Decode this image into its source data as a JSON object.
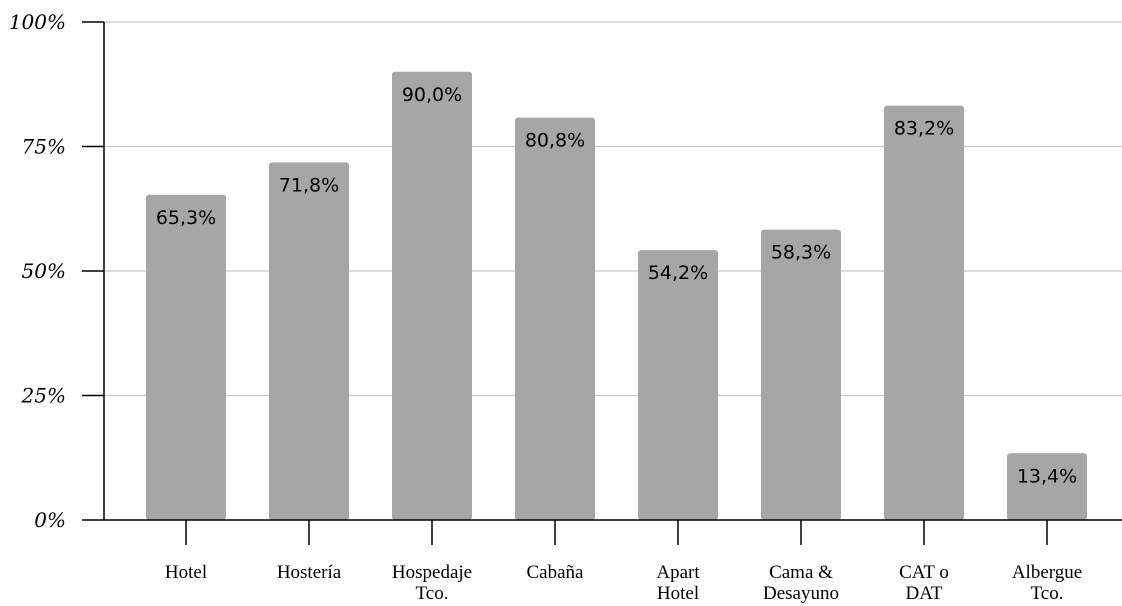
{
  "chart_data": {
    "type": "bar",
    "categories": [
      [
        "Hotel"
      ],
      [
        "Hostería"
      ],
      [
        "Hospedaje",
        "Tco."
      ],
      [
        "Cabaña"
      ],
      [
        "Apart",
        "Hotel"
      ],
      [
        "Cama &",
        "Desayuno"
      ],
      [
        "CAT o",
        "DAT"
      ],
      [
        "Albergue",
        "Tco."
      ]
    ],
    "values": [
      65.3,
      71.8,
      90.0,
      80.8,
      54.2,
      58.3,
      83.2,
      13.4
    ],
    "data_labels": [
      "65,3%",
      "71,8%",
      "90,0%",
      "80,8%",
      "54,2%",
      "58,3%",
      "83,2%",
      "13,4%"
    ],
    "ylim": [
      0,
      100
    ],
    "yticks": [
      0,
      25,
      50,
      75,
      100
    ],
    "ytick_labels": [
      "0%",
      "25%",
      "50%",
      "75%",
      "100%"
    ],
    "grid": true,
    "legend": "none",
    "colors": {
      "bar": "#a6a6a6",
      "grid": "#c8c8c8",
      "axis": "#000000"
    }
  }
}
